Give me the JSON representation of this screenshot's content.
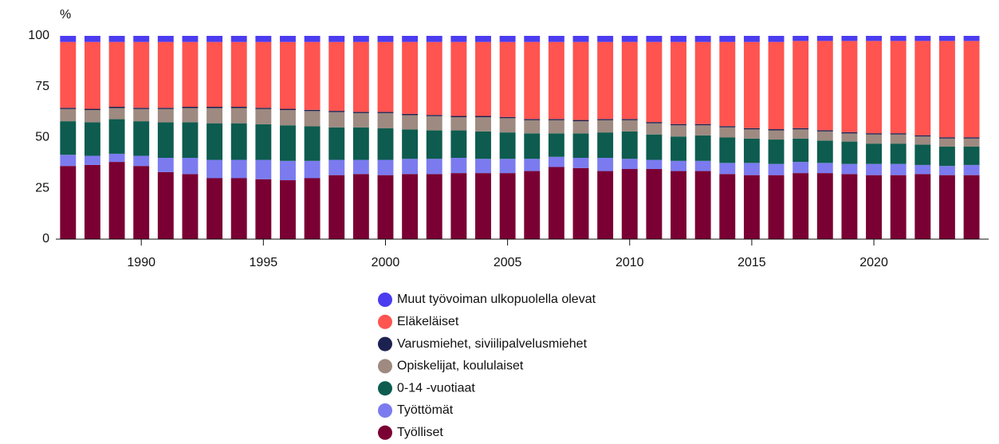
{
  "chart_data": {
    "type": "stacked_bar",
    "y_label": "%",
    "x": [
      1987,
      1988,
      1989,
      1990,
      1991,
      1992,
      1993,
      1994,
      1995,
      1996,
      1997,
      1998,
      1999,
      2000,
      2001,
      2002,
      2003,
      2004,
      2005,
      2006,
      2007,
      2008,
      2009,
      2010,
      2011,
      2012,
      2013,
      2014,
      2015,
      2016,
      2017,
      2018,
      2019,
      2020,
      2021,
      2022,
      2023,
      2024
    ],
    "xlim": [
      1986.5,
      2024.7
    ],
    "xticks": [
      1990,
      1995,
      2000,
      2005,
      2010,
      2015,
      2020
    ],
    "ylim": [
      0,
      100
    ],
    "yticks": [
      0,
      25,
      50,
      75,
      100
    ],
    "series": [
      {
        "name": "Työlliset",
        "color": "#7a0033",
        "values": [
          36,
          36.5,
          38,
          36,
          33,
          32,
          30,
          30,
          29.5,
          29,
          30,
          31.5,
          32,
          31.5,
          32,
          32,
          32.5,
          32.5,
          32.5,
          33.5,
          35.5,
          35,
          33.5,
          34.5,
          34.5,
          33.5,
          33.5,
          32,
          31.5,
          31.5,
          32.5,
          32.5,
          32,
          31.5,
          31.5,
          32,
          31.5,
          31.5
        ]
      },
      {
        "name": "Työttömät",
        "color": "#7b7bef",
        "values": [
          5.5,
          4.5,
          4,
          5,
          7,
          8,
          9,
          9,
          9.5,
          9.5,
          8.5,
          7.5,
          7,
          7.5,
          7.5,
          7.5,
          7.5,
          7,
          7,
          6,
          5,
          5,
          6.5,
          5,
          4.5,
          5,
          5,
          5.5,
          6,
          5.5,
          5.5,
          5,
          5,
          5.5,
          5.5,
          4.5,
          4.5,
          5
        ]
      },
      {
        "name": "0-14 -vuotiaat",
        "color": "#0d5c4f",
        "values": [
          16.5,
          16.5,
          17,
          17,
          17.5,
          17.5,
          18,
          18,
          17.5,
          17.5,
          17,
          16,
          16,
          15.5,
          14.5,
          14,
          13.5,
          13.5,
          13,
          12.5,
          11.5,
          12,
          12.5,
          13.5,
          12.5,
          12,
          12.5,
          12.5,
          12,
          12,
          11.5,
          11,
          11,
          10,
          10,
          10,
          9.5,
          9
        ]
      },
      {
        "name": "Opiskelijat, koululaiset",
        "color": "#9e8a80",
        "values": [
          6,
          6,
          5.5,
          6,
          6.5,
          7,
          7.5,
          7.5,
          7.5,
          7.5,
          7.5,
          7.5,
          7,
          7.5,
          7,
          7,
          6.5,
          7,
          7,
          6.5,
          6.5,
          6,
          6,
          5.5,
          5.5,
          5.5,
          5,
          5,
          4.5,
          4.5,
          4.5,
          4.5,
          4,
          4.5,
          4.5,
          4,
          4,
          4
        ]
      },
      {
        "name": "Varusmiehet, siviilipalvelusmiehet",
        "color": "#1c2250",
        "values": [
          0.6,
          0.6,
          0.6,
          0.6,
          0.6,
          0.6,
          0.6,
          0.6,
          0.6,
          0.6,
          0.6,
          0.6,
          0.6,
          0.6,
          0.6,
          0.6,
          0.6,
          0.6,
          0.6,
          0.6,
          0.6,
          0.6,
          0.6,
          0.6,
          0.6,
          0.6,
          0.6,
          0.6,
          0.6,
          0.6,
          0.6,
          0.6,
          0.6,
          0.6,
          0.6,
          0.6,
          0.6,
          0.6
        ]
      },
      {
        "name": "Eläkeläiset",
        "color": "#ff5450",
        "values": [
          32.4,
          32.9,
          31.9,
          32.4,
          32.4,
          31.9,
          31.9,
          31.9,
          32.4,
          32.9,
          33.4,
          33.9,
          34.4,
          34.4,
          35.4,
          35.9,
          36.4,
          36.4,
          36.9,
          37.9,
          37.9,
          38.4,
          37.9,
          37.9,
          39.4,
          40.4,
          40.4,
          41.4,
          42.4,
          42.9,
          42.9,
          43.9,
          44.9,
          45.4,
          45.4,
          46.4,
          47.4,
          47.4
        ]
      },
      {
        "name": "Muut työvoiman ulkopuolella olevat",
        "color": "#4b3cf0",
        "values": [
          3,
          3,
          3,
          3,
          3,
          3,
          3,
          3,
          3,
          3,
          3,
          3,
          3,
          3,
          3,
          3,
          3,
          3,
          3,
          3,
          3,
          3,
          3,
          3,
          3,
          3,
          3,
          3,
          3,
          3,
          2.5,
          2.5,
          2.5,
          2.5,
          2.5,
          2.5,
          2.5,
          2.5
        ]
      }
    ]
  }
}
